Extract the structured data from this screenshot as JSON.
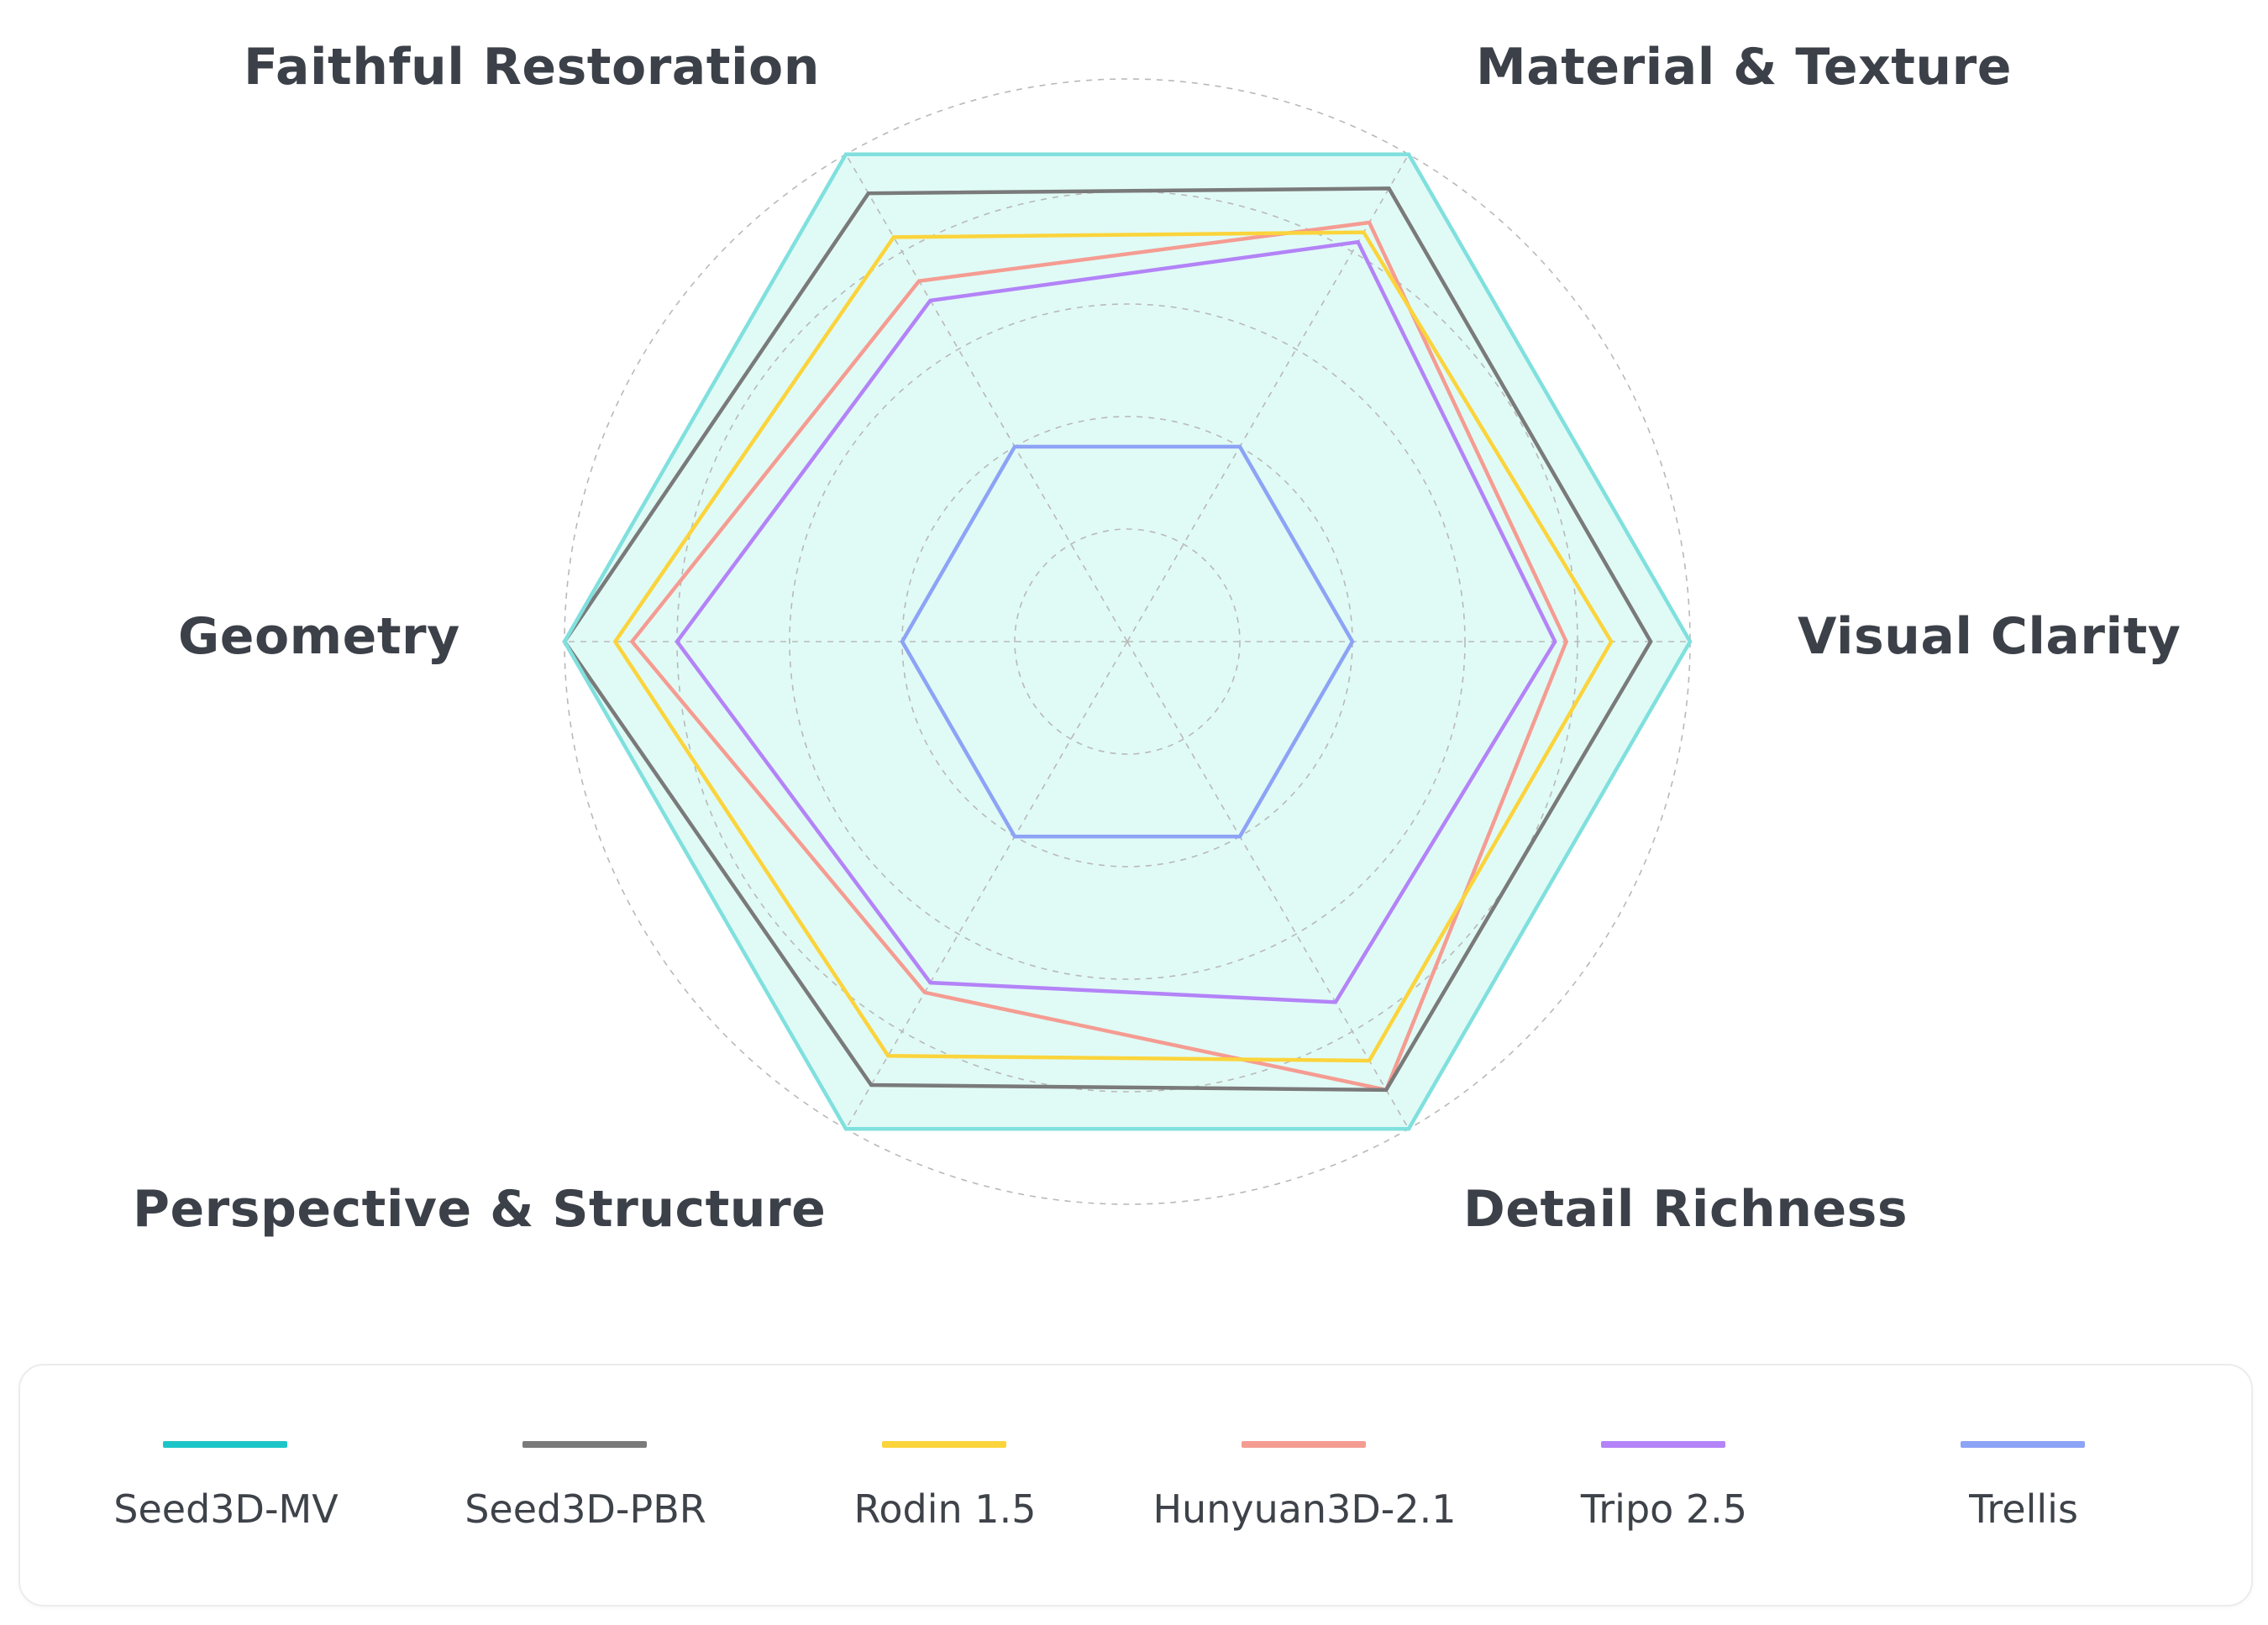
{
  "chart_data": {
    "type": "radar",
    "axes": [
      "Visual Clarity",
      "Material & Texture",
      "Faithful Restoration",
      "Geometry",
      "Perspective & Structure",
      "Detail Richness"
    ],
    "rlim": [
      0,
      5
    ],
    "grid": true,
    "legend_position": "bottom",
    "series": [
      {
        "name": "Seed3D-MV",
        "color": "#1ec5c8",
        "fill": true,
        "values": [
          5.0,
          5.0,
          5.0,
          5.0,
          5.0,
          5.0
        ]
      },
      {
        "name": "Seed3D-PBR",
        "color": "#7a7a7a",
        "fill": false,
        "values": [
          4.65,
          4.65,
          4.6,
          5.0,
          4.55,
          4.6
        ]
      },
      {
        "name": "Rodin 1.5",
        "color": "#fbd43c",
        "fill": false,
        "values": [
          4.3,
          4.2,
          4.15,
          4.55,
          4.25,
          4.3
        ]
      },
      {
        "name": "Hunyuan3D-2.1",
        "color": "#f59c92",
        "fill": false,
        "values": [
          3.9,
          4.3,
          3.7,
          4.4,
          3.6,
          4.6
        ]
      },
      {
        "name": "Tripo 2.5",
        "color": "#b383f7",
        "fill": false,
        "values": [
          3.8,
          4.1,
          3.5,
          4.0,
          3.5,
          3.7
        ]
      },
      {
        "name": "Trellis",
        "color": "#8da3f5",
        "fill": false,
        "values": [
          2.0,
          2.0,
          2.0,
          2.0,
          2.0,
          2.0
        ]
      }
    ]
  }
}
